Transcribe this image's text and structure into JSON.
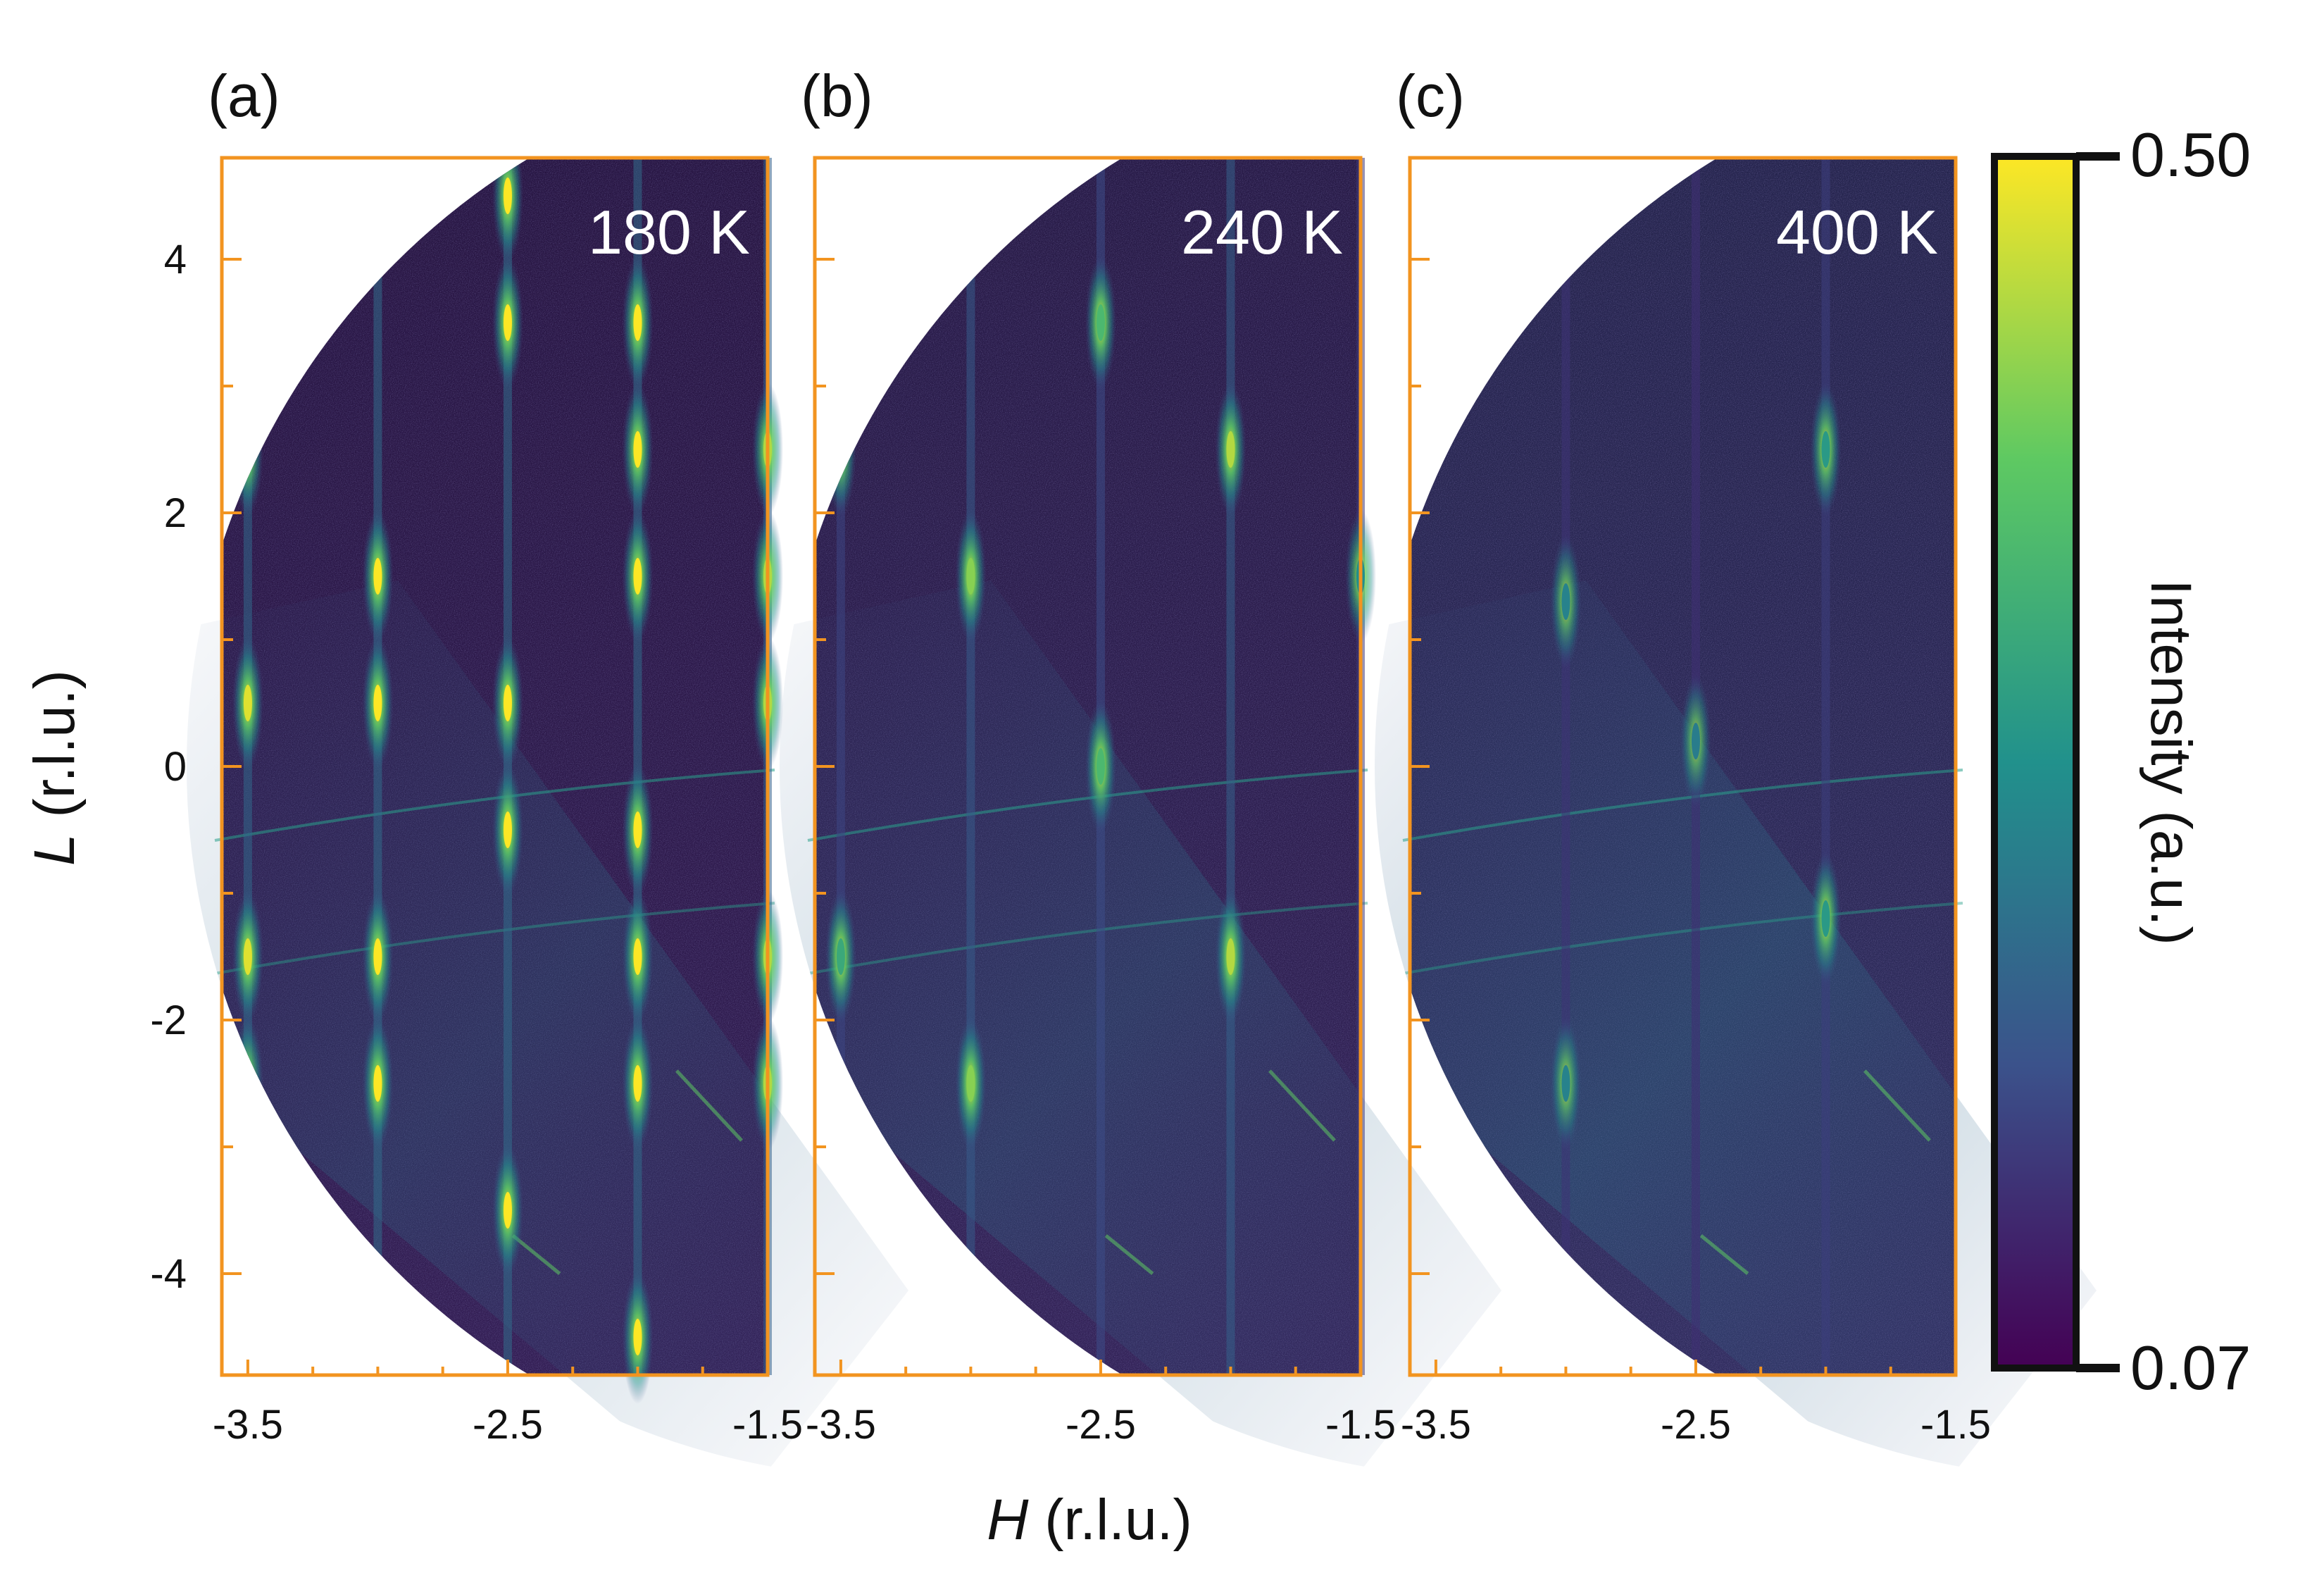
{
  "figure": {
    "x_axis_label_italic": "H",
    "x_axis_label_rest": " (r.l.u.)",
    "y_axis_label_italic": "L",
    "y_axis_label_rest": " (r.l.u.)"
  },
  "colors": {
    "frame": "#f29420",
    "background_dark": "#230c35",
    "cmap": [
      "#440154",
      "#3b528b",
      "#21918c",
      "#5ec962",
      "#fde725"
    ]
  },
  "chart_data": [
    {
      "type": "heatmap",
      "panel_label": "(a)",
      "temperature": "180 K",
      "xlim": [
        -3.6,
        -1.5
      ],
      "ylim": [
        -4.8,
        4.8
      ],
      "x_ticks": [
        -3.5,
        -2.5,
        -1.5
      ],
      "x_tick_labels": [
        "-3.5",
        "-2.5",
        "-1.5"
      ],
      "y_ticks": [
        4,
        2,
        0,
        -2,
        -4
      ],
      "y_tick_labels": [
        "4",
        "2",
        "0",
        "-2",
        "-4"
      ],
      "background_intensity": 0.12,
      "rods": [
        {
          "H": -3.5,
          "L": [
            2.5,
            0.5,
            -1.5,
            -2.5
          ],
          "intensity": 0.48
        },
        {
          "H": -3.0,
          "L": [
            1.5,
            0.5,
            -1.5,
            -2.5
          ],
          "intensity": 0.5
        },
        {
          "H": -2.5,
          "L": [
            4.5,
            3.5,
            0.5,
            -0.5,
            -3.5
          ],
          "intensity": 0.5
        },
        {
          "H": -2.0,
          "L": [
            3.5,
            2.5,
            1.5,
            -0.5,
            -1.5,
            -2.5,
            -4.5
          ],
          "intensity": 0.5
        },
        {
          "H": -1.5,
          "L": [
            2.5,
            1.5,
            0.5,
            -1.5,
            -2.5
          ],
          "intensity": 0.45
        }
      ]
    },
    {
      "type": "heatmap",
      "panel_label": "(b)",
      "temperature": "240 K",
      "xlim": [
        -3.6,
        -1.5
      ],
      "ylim": [
        -4.8,
        4.8
      ],
      "x_ticks": [
        -3.5,
        -2.5,
        -1.5
      ],
      "x_tick_labels": [
        "-3.5",
        "-2.5",
        "-1.5"
      ],
      "y_ticks": [
        4,
        2,
        0,
        -2,
        -4
      ],
      "y_tick_labels": [
        "4",
        "2",
        "0",
        "-2",
        "-4"
      ],
      "background_intensity": 0.14,
      "rods": [
        {
          "H": -3.5,
          "L": [
            2.5,
            -1.5
          ],
          "intensity": 0.33
        },
        {
          "H": -3.0,
          "L": [
            1.5,
            -2.5
          ],
          "intensity": 0.42
        },
        {
          "H": -2.5,
          "L": [
            3.5,
            0.0
          ],
          "intensity": 0.36
        },
        {
          "H": -2.0,
          "L": [
            2.5,
            -1.5
          ],
          "intensity": 0.45
        },
        {
          "H": -1.5,
          "L": [
            1.5
          ],
          "intensity": 0.28
        }
      ]
    },
    {
      "type": "heatmap",
      "panel_label": "(c)",
      "temperature": "400 K",
      "xlim": [
        -3.6,
        -1.5
      ],
      "ylim": [
        -4.8,
        4.8
      ],
      "x_ticks": [
        -3.5,
        -2.5,
        -1.5
      ],
      "x_tick_labels": [
        "-3.5",
        "-2.5",
        "-1.5"
      ],
      "y_ticks": [
        4,
        2,
        0,
        -2,
        -4
      ],
      "y_tick_labels": [
        "4",
        "2",
        "0",
        "-2",
        "-4"
      ],
      "background_intensity": 0.18,
      "rods": [
        {
          "H": -3.0,
          "L": [
            1.3,
            -2.5
          ],
          "intensity": 0.26
        },
        {
          "H": -2.5,
          "L": [
            0.2
          ],
          "intensity": 0.25
        },
        {
          "H": -2.0,
          "L": [
            2.5,
            -1.2
          ],
          "intensity": 0.3
        }
      ]
    }
  ],
  "colorbar": {
    "label": "Intensity (a.u.)",
    "min": 0.07,
    "max": 0.5,
    "min_label": "0.07",
    "max_label": "0.50",
    "colormap": "viridis"
  }
}
